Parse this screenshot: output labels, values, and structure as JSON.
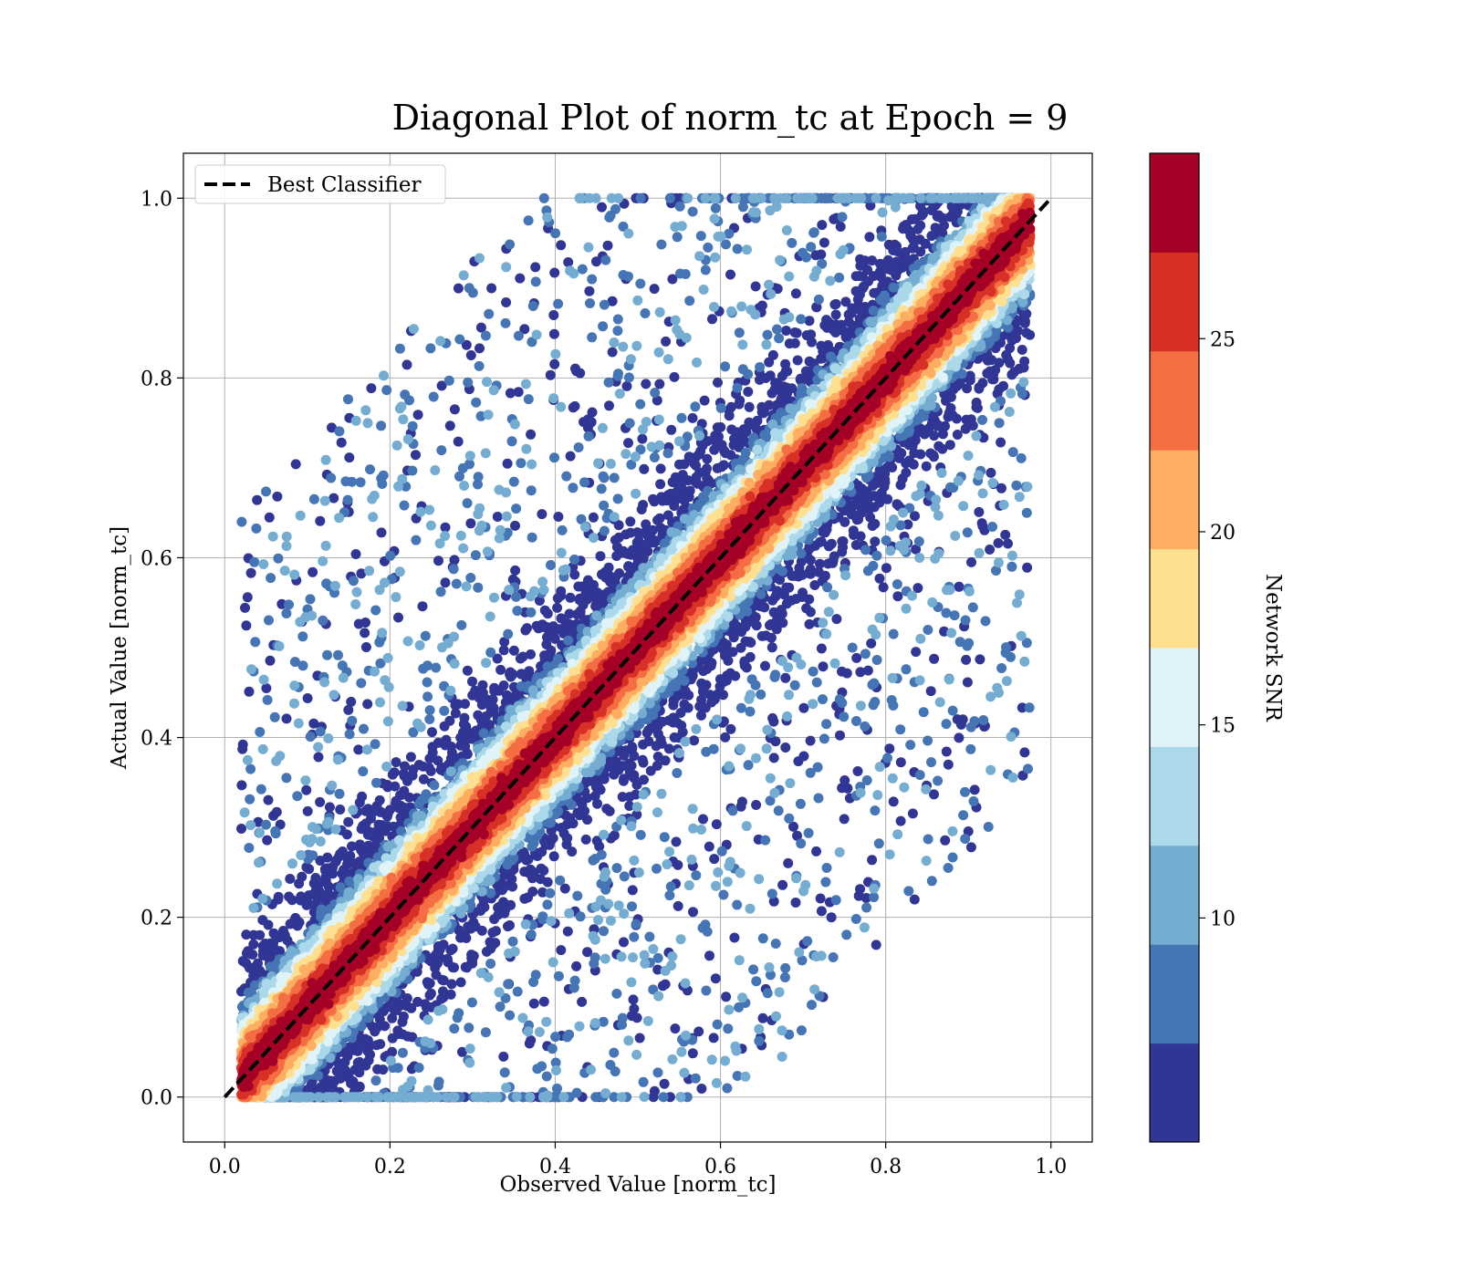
{
  "chart_data": {
    "type": "scatter",
    "title": "Diagonal Plot of norm_tc at Epoch = 9",
    "xlabel": "Observed Value [norm_tc]",
    "ylabel": "Actual Value [norm_tc]",
    "xlim": [
      -0.05,
      1.05
    ],
    "ylim": [
      -0.05,
      1.05
    ],
    "x_ticks": [
      "0.0",
      "0.2",
      "0.4",
      "0.6",
      "0.8",
      "1.0"
    ],
    "y_ticks": [
      "0.0",
      "0.2",
      "0.4",
      "0.6",
      "0.8",
      "1.0"
    ],
    "grid": true,
    "legend": {
      "placement": "upper-left",
      "entries": [
        {
          "label": "Best Classifier",
          "style": "dashed",
          "color": "#000000"
        }
      ]
    },
    "reference_line": {
      "label": "Best Classifier",
      "x": [
        0,
        1
      ],
      "y": [
        0,
        1
      ]
    },
    "colorbar": {
      "label": "Network SNR",
      "ticks": [
        "10",
        "15",
        "20",
        "25"
      ],
      "tick_values": [
        10,
        15,
        20,
        25
      ],
      "range": [
        4.2,
        29.8
      ],
      "colors": [
        "#313695",
        "#4575b4",
        "#74add1",
        "#abd9e9",
        "#e0f3f8",
        "#fee090",
        "#fdae61",
        "#f46d43",
        "#d73027",
        "#a50026"
      ],
      "boundaries": [
        4.2,
        6.76,
        9.32,
        11.88,
        14.44,
        17.0,
        19.56,
        22.12,
        24.68,
        27.24,
        29.8
      ]
    },
    "density": {
      "description_free": true,
      "core_band_halfwidth": 0.1,
      "scatter_points_approx": 30000
    }
  }
}
